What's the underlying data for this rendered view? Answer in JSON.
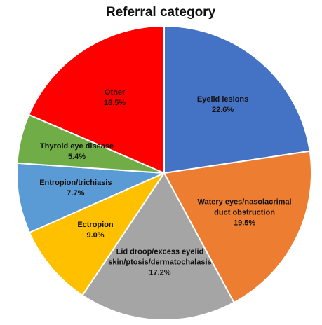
{
  "chart_data": {
    "type": "pie",
    "title": "Referral category",
    "categories": [
      "Eyelid lesions",
      "Watery eyes/nasolacrimal duct obstruction",
      "Lid droop/excess eyelid skin/ptosis/dermatochalasis",
      "Ectropion",
      "Entropion/trichiasis",
      "Thyroid eye disease",
      "Other"
    ],
    "values": [
      22.6,
      19.5,
      17.2,
      9.0,
      7.7,
      5.4,
      18.5
    ],
    "value_labels": [
      "22.6%",
      "19.5%",
      "17.2%",
      "9.0%",
      "7.7%",
      "5.4%",
      "18.5%"
    ],
    "colors": [
      "#4472c4",
      "#ed7d31",
      "#a5a5a5",
      "#ffc000",
      "#5b9bd5",
      "#70ad47",
      "#ff0000"
    ]
  }
}
